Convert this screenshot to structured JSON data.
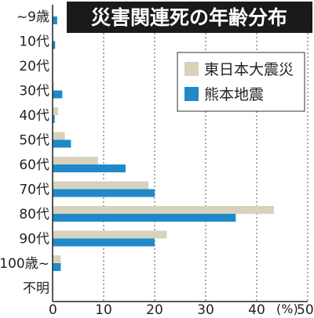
{
  "title": "災害関連死の年齢分布",
  "colors": {
    "series1": "#d7d2bd",
    "series2": "#1f8ac9"
  },
  "chart_data": {
    "type": "bar",
    "orientation": "horizontal",
    "title": "災害関連死の年齢分布",
    "xunit": "(%)",
    "xlim": [
      0,
      50
    ],
    "xticks": [
      0,
      10,
      20,
      30,
      40,
      50
    ],
    "grid": true,
    "legend_position": "top-right",
    "categories": [
      "~9歳",
      "10代",
      "20代",
      "30代",
      "40代",
      "50代",
      "60代",
      "70代",
      "80代",
      "90代",
      "100歳~",
      "不明"
    ],
    "series": [
      {
        "name": "東日本大震災",
        "values": [
          0,
          0,
          0,
          0.3,
          1.1,
          2.4,
          8.9,
          18.8,
          43.4,
          22.4,
          1.6,
          0
        ]
      },
      {
        "name": "熊本地震",
        "values": [
          0.9,
          0.5,
          0,
          1.9,
          0.4,
          3.6,
          14.3,
          20,
          35.9,
          20,
          1.6,
          0
        ]
      }
    ]
  }
}
